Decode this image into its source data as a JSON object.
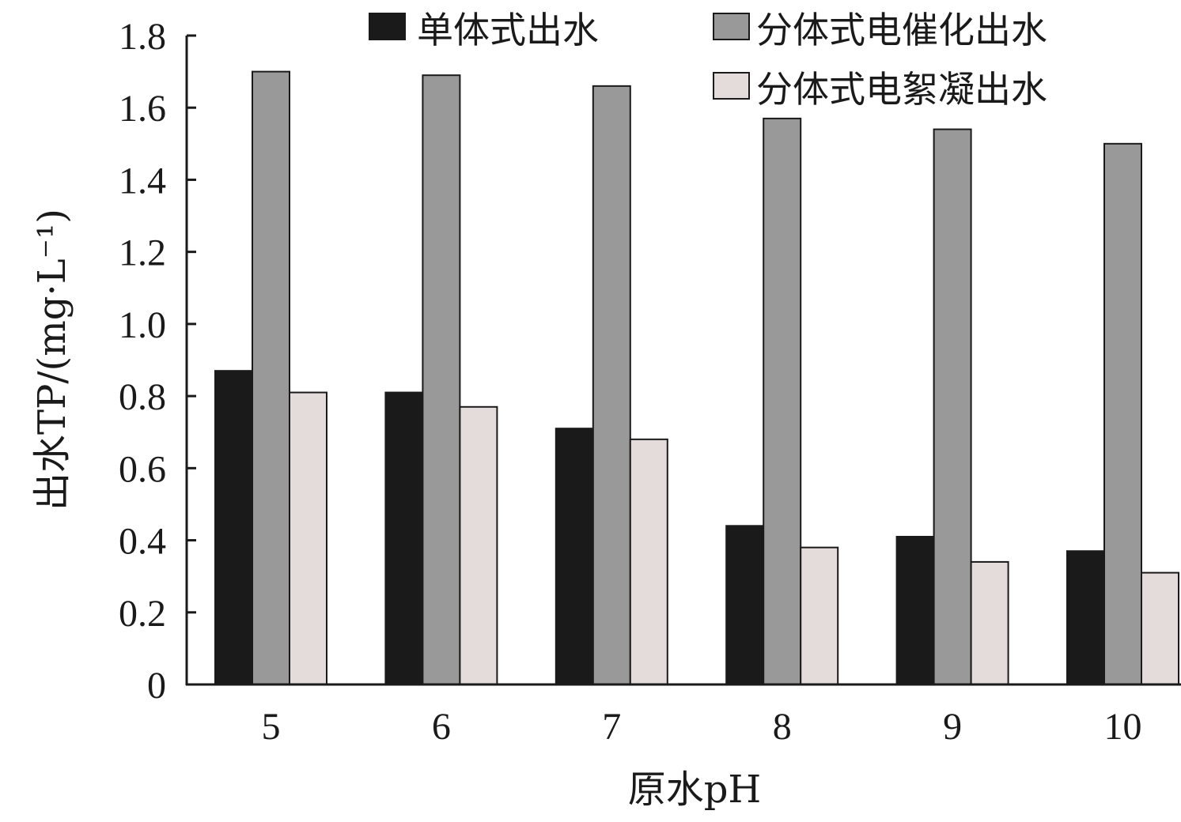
{
  "chart_data": {
    "type": "bar",
    "title": "",
    "xlabel": "原水pH",
    "ylabel": "出水TP/(mg·L⁻¹)",
    "categories": [
      "5",
      "6",
      "7",
      "8",
      "9",
      "10"
    ],
    "ylim": [
      0,
      1.8
    ],
    "yticks": [
      "0",
      "0.2",
      "0.4",
      "0.6",
      "0.8",
      "1.0",
      "1.2",
      "1.4",
      "1.6",
      "1.8"
    ],
    "grid": false,
    "legend_position": "top-right",
    "series": [
      {
        "name": "单体式出水",
        "color": "#1a1a1a",
        "values": [
          0.87,
          0.81,
          0.71,
          0.44,
          0.41,
          0.37
        ]
      },
      {
        "name": "分体式电催化出水",
        "color": "#999999",
        "values": [
          1.7,
          1.69,
          1.66,
          1.57,
          1.54,
          1.5
        ]
      },
      {
        "name": "分体式电絮凝出水",
        "color": "#e3dcda",
        "values": [
          0.81,
          0.77,
          0.68,
          0.38,
          0.34,
          0.31
        ]
      }
    ]
  }
}
